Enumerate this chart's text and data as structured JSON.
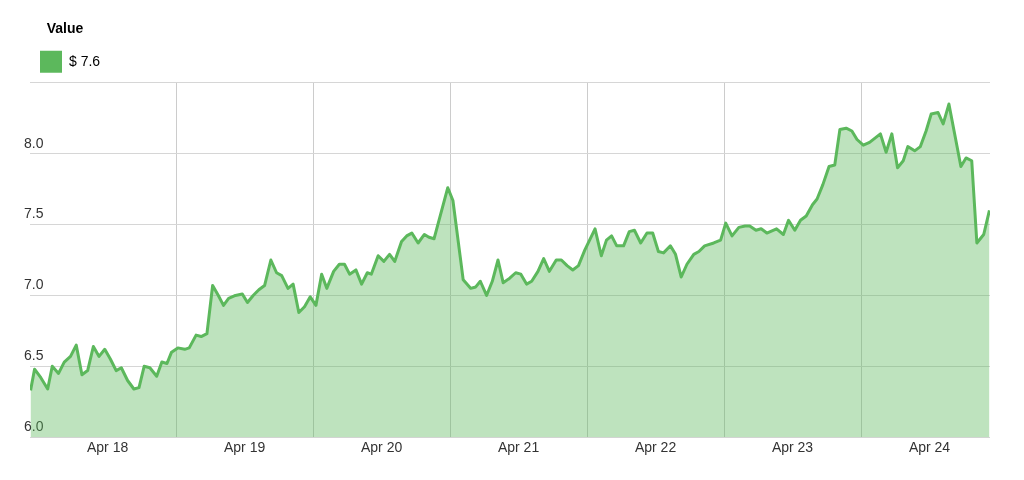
{
  "chart_data": {
    "type": "area",
    "legend_title": "Value",
    "legend": "top left",
    "grid": true,
    "marker": "none",
    "x": [
      "--04-17T10:30",
      "--04-17T11:12",
      "--04-17T12:18",
      "--04-17T13:30",
      "--04-17T14:18",
      "--04-17T15:24",
      "--04-17T16:24",
      "--04-17T17:30",
      "--04-17T18:30",
      "--04-17T19:30",
      "--04-17T20:30",
      "--04-17T21:30",
      "--04-17T22:30",
      "--04-17T23:30",
      "--04-18T00:30",
      "--04-18T01:30",
      "--04-18T02:24",
      "--04-18T03:30",
      "--04-18T04:36",
      "--04-18T05:30",
      "--04-18T06:24",
      "--04-18T07:24",
      "--04-18T08:36",
      "--04-18T09:30",
      "--04-18T10:24",
      "--04-18T11:12",
      "--04-18T12:18",
      "--04-18T13:30",
      "--04-18T14:18",
      "--04-18T15:30",
      "--04-18T16:24",
      "--04-18T17:24",
      "--04-18T18:24",
      "--04-18T19:24",
      "--04-18T20:18",
      "--04-18T21:12",
      "--04-18T22:24",
      "--04-18T23:36",
      "--04-19T00:30",
      "--04-19T01:30",
      "--04-19T02:30",
      "--04-19T03:30",
      "--04-19T04:36",
      "--04-19T05:36",
      "--04-19T06:30",
      "--04-19T07:36",
      "--04-19T08:30",
      "--04-19T09:30",
      "--04-19T10:30",
      "--04-19T11:30",
      "--04-19T12:30",
      "--04-19T13:30",
      "--04-19T14:24",
      "--04-19T15:36",
      "--04-19T16:36",
      "--04-19T17:30",
      "--04-19T18:24",
      "--04-19T19:30",
      "--04-19T20:30",
      "--04-19T21:30",
      "--04-19T22:12",
      "--04-19T23:24",
      "--04-20T00:24",
      "--04-20T01:24",
      "--04-20T02:18",
      "--04-20T03:30",
      "--04-20T04:24",
      "--04-20T05:18",
      "--04-20T06:24",
      "--04-20T07:30",
      "--04-20T08:18",
      "--04-20T09:12",
      "--04-20T11:36",
      "--04-20T12:30",
      "--04-20T14:18",
      "--04-20T15:36",
      "--04-20T16:30",
      "--04-20T17:18",
      "--04-20T18:24",
      "--04-20T19:24",
      "--04-20T20:24",
      "--04-20T21:18",
      "--04-20T22:24",
      "--04-20T23:30",
      "--04-21T00:24",
      "--04-21T01:24",
      "--04-21T02:18",
      "--04-21T03:24",
      "--04-21T04:24",
      "--04-21T05:24",
      "--04-21T06:36",
      "--04-21T07:30",
      "--04-21T08:30",
      "--04-21T09:30",
      "--04-21T10:30",
      "--04-21T11:36",
      "--04-21T13:24",
      "--04-21T14:30",
      "--04-21T15:24",
      "--04-21T16:18",
      "--04-21T17:12",
      "--04-21T18:24",
      "--04-21T19:24",
      "--04-21T20:18",
      "--04-21T21:24",
      "--04-21T22:30",
      "--04-21T23:30",
      "--04-22T00:30",
      "--04-22T01:24",
      "--04-22T02:36",
      "--04-22T03:30",
      "--04-22T04:30",
      "--04-22T05:30",
      "--04-22T06:42",
      "--04-22T07:36",
      "--04-22T08:36",
      "--04-22T10:12",
      "--04-22T11:24",
      "--04-22T12:18",
      "--04-22T13:24",
      "--04-22T14:36",
      "--04-22T15:42",
      "--04-22T16:30",
      "--04-22T17:36",
      "--04-22T18:30",
      "--04-22T19:30",
      "--04-22T21:12",
      "--04-22T22:24",
      "--04-22T23:18",
      "--04-23T00:24",
      "--04-23T01:24",
      "--04-23T02:24",
      "--04-23T03:30",
      "--04-23T04:18",
      "--04-23T05:18",
      "--04-23T06:24",
      "--04-23T07:24",
      "--04-23T08:18",
      "--04-23T09:24",
      "--04-23T10:24",
      "--04-23T11:18",
      "--04-23T12:24",
      "--04-23T13:30",
      "--04-23T15:24",
      "--04-23T16:24",
      "--04-23T17:24",
      "--04-23T18:24",
      "--04-23T19:24",
      "--04-23T20:12",
      "--04-23T21:24",
      "--04-23T22:24",
      "--04-23T23:24",
      "--04-24T00:18",
      "--04-24T01:30",
      "--04-24T02:24",
      "--04-24T03:24",
      "--04-24T04:24",
      "--04-24T05:30",
      "--04-24T06:24",
      "--04-24T07:24",
      "--04-24T08:18",
      "--04-24T09:30",
      "--04-24T10:30"
    ],
    "series": [
      {
        "name": "$ 7.6",
        "color": "#5cb85c",
        "values": [
          6.33,
          6.48,
          6.42,
          6.34,
          6.5,
          6.45,
          6.53,
          6.57,
          6.65,
          6.44,
          6.47,
          6.64,
          6.57,
          6.62,
          6.55,
          6.47,
          6.49,
          6.4,
          6.34,
          6.35,
          6.5,
          6.49,
          6.43,
          6.53,
          6.52,
          6.6,
          6.63,
          6.62,
          6.63,
          6.72,
          6.71,
          6.73,
          7.07,
          7.0,
          6.93,
          6.98,
          7.0,
          7.01,
          6.95,
          7.0,
          7.04,
          7.07,
          7.25,
          7.16,
          7.14,
          7.05,
          7.08,
          6.88,
          6.92,
          6.99,
          6.93,
          7.15,
          7.05,
          7.17,
          7.22,
          7.22,
          7.15,
          7.18,
          7.08,
          7.16,
          7.15,
          7.28,
          7.24,
          7.29,
          7.24,
          7.38,
          7.42,
          7.44,
          7.37,
          7.43,
          7.41,
          7.4,
          7.76,
          7.67,
          7.11,
          7.05,
          7.06,
          7.1,
          7.0,
          7.1,
          7.25,
          7.09,
          7.12,
          7.16,
          7.15,
          7.08,
          7.1,
          7.17,
          7.26,
          7.17,
          7.25,
          7.25,
          7.21,
          7.18,
          7.21,
          7.32,
          7.47,
          7.28,
          7.39,
          7.42,
          7.35,
          7.35,
          7.45,
          7.46,
          7.37,
          7.44,
          7.44,
          7.31,
          7.3,
          7.35,
          7.29,
          7.13,
          7.22,
          7.29,
          7.31,
          7.35,
          7.37,
          7.39,
          7.51,
          7.42,
          7.48,
          7.49,
          7.49,
          7.46,
          7.47,
          7.44,
          7.47,
          7.43,
          7.53,
          7.46,
          7.53,
          7.56,
          7.64,
          7.68,
          7.78,
          7.91,
          7.92,
          8.17,
          8.18,
          8.16,
          8.1,
          8.06,
          8.08,
          8.14,
          8.01,
          8.14,
          7.9,
          7.95,
          8.05,
          8.02,
          8.05,
          8.16,
          8.28,
          8.29,
          8.21,
          8.35,
          8.14,
          7.91,
          7.97,
          7.95,
          7.37,
          7.43,
          7.6
        ]
      }
    ],
    "xlim": [
      "--04-17T10:24",
      "--04-24T10:36"
    ],
    "xticks": [
      {
        "value": "--04-18",
        "label": "Apr 18"
      },
      {
        "value": "--04-18T12:00",
        "label": null
      },
      {
        "value": "--04-19",
        "label": "Apr 19"
      },
      {
        "value": "--04-19T12:00",
        "label": null
      },
      {
        "value": "--04-20",
        "label": "Apr 20"
      },
      {
        "value": "--04-20T12:00",
        "label": null
      },
      {
        "value": "--04-21",
        "label": "Apr 21"
      },
      {
        "value": "--04-21T12:00",
        "label": null
      },
      {
        "value": "--04-22",
        "label": "Apr 22"
      },
      {
        "value": "--04-22T12:00",
        "label": null
      },
      {
        "value": "--04-23",
        "label": "Apr 23"
      },
      {
        "value": "--04-23T12:00",
        "label": null
      },
      {
        "value": "--04-24",
        "label": "Apr 24"
      }
    ],
    "ylim": [
      6.0,
      8.5
    ],
    "yticks": [
      {
        "value": 6,
        "label": "6.0"
      },
      {
        "value": 6.5,
        "label": "6.5"
      },
      {
        "value": 7,
        "label": "7.0"
      },
      {
        "value": 7.5,
        "label": "7.5"
      },
      {
        "value": 8,
        "label": "8.0"
      },
      {
        "value": 8.5,
        "label": null
      }
    ]
  }
}
